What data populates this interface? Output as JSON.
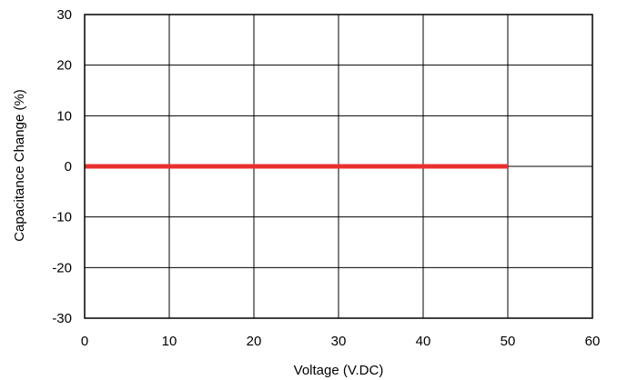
{
  "chart_data": {
    "type": "line",
    "title": "",
    "xlabel": "Voltage  (V.DC)",
    "ylabel": "Capacitance Change (%)",
    "xlim": [
      0,
      60
    ],
    "ylim": [
      -30,
      30
    ],
    "x_ticks": [
      0,
      10,
      20,
      30,
      40,
      50,
      60
    ],
    "y_ticks": [
      30,
      20,
      10,
      0,
      -10,
      -20,
      -30
    ],
    "x_tick_labels": [
      "0",
      "10",
      "20",
      "30",
      "40",
      "50",
      "60"
    ],
    "y_tick_labels": [
      "30",
      "20",
      "10",
      "0",
      "-10",
      "-20",
      "-30"
    ],
    "grid": true,
    "series": [
      {
        "x": [
          0,
          50
        ],
        "y": [
          0,
          0
        ],
        "color": "#e8312f"
      }
    ]
  }
}
